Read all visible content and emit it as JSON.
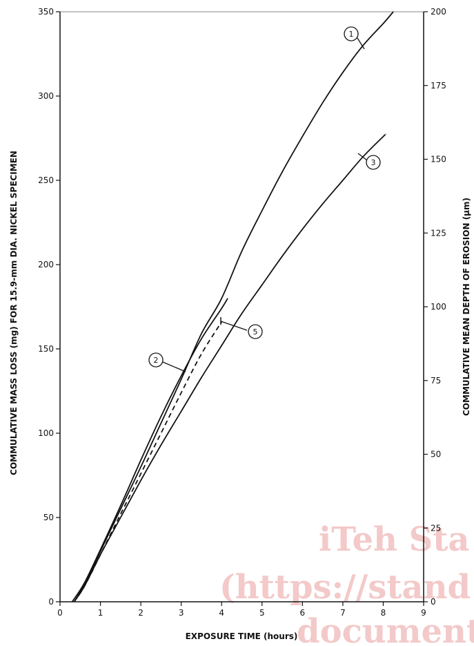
{
  "chart_data": {
    "type": "line",
    "xlabel": "EXPOSURE TIME (hours)",
    "ylabel_left": "COMMULATIVE MASS LOSS (mg) FOR 15.9-mm DIA. NICKEL SPECIMEN",
    "ylabel_right": "COMMULATIVE MEAN DEPTH OF EROSION (µm)",
    "xlim": [
      0,
      9
    ],
    "ylim_left": [
      0,
      350
    ],
    "ylim_right": [
      0,
      200
    ],
    "x_ticks": [
      "0",
      "1",
      "2",
      "3",
      "4",
      "5",
      "6",
      "7",
      "8",
      "9"
    ],
    "y_ticks_left": [
      "0",
      "50",
      "100",
      "150",
      "200",
      "250",
      "300",
      "350"
    ],
    "y_ticks_right": [
      "0",
      "25",
      "50",
      "75",
      "100",
      "125",
      "150",
      "175",
      "200"
    ],
    "grid": false,
    "series": [
      {
        "name": "1",
        "style": "solid",
        "x": [
          0.35,
          0.6,
          1.0,
          1.5,
          2.0,
          2.5,
          3.0,
          3.5,
          4.0,
          4.5,
          5.0,
          5.5,
          6.0,
          6.5,
          7.0,
          7.5,
          8.0,
          8.25
        ],
        "y": [
          0,
          10,
          30,
          55,
          80,
          106,
          132,
          159,
          180,
          208,
          232,
          255,
          276,
          296,
          314,
          330,
          343,
          350
        ]
      },
      {
        "name": "2",
        "style": "solid",
        "x": [
          0.3,
          0.6,
          1.0,
          1.5,
          2.0,
          2.5,
          3.0,
          3.5,
          4.0,
          4.15
        ],
        "y": [
          0,
          11,
          31,
          57,
          84,
          110,
          134,
          156,
          174,
          180
        ]
      },
      {
        "name": "3",
        "style": "solid",
        "x": [
          0.35,
          0.6,
          1.0,
          1.5,
          2.0,
          2.5,
          3.0,
          3.5,
          4.0,
          4.5,
          5.0,
          5.5,
          6.0,
          6.5,
          7.0,
          7.5,
          8.0,
          8.05
        ],
        "y": [
          0,
          9,
          28,
          50,
          72,
          93,
          113,
          133,
          152,
          171,
          188,
          205,
          221,
          236,
          250,
          264,
          276,
          277
        ]
      },
      {
        "name": "5",
        "style": "dashed",
        "x": [
          0.35,
          0.6,
          1.0,
          1.5,
          2.0,
          2.5,
          3.0,
          3.5,
          4.0
        ],
        "y": [
          0,
          9,
          28,
          52,
          76,
          100,
          124,
          147,
          166
        ]
      }
    ],
    "annotations": [
      {
        "label": "1"
      },
      {
        "label": "2"
      },
      {
        "label": "3"
      },
      {
        "label": "5"
      }
    ],
    "watermark": [
      "iTeh Sta",
      "(https://stand",
      "document"
    ]
  }
}
